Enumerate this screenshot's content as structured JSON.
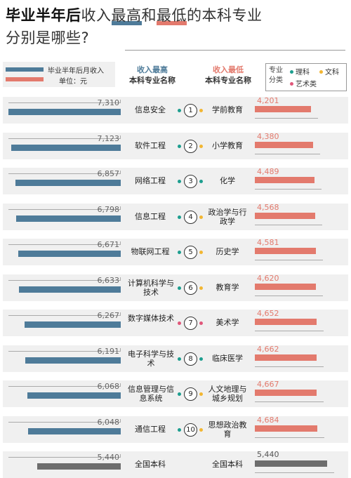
{
  "title": {
    "bold": "毕业半年后",
    "part1": "收入",
    "part2": "最高",
    "part3": "和",
    "part4": "最低",
    "part5": "的本科专业",
    "line2": "分别是哪些?"
  },
  "legend": {
    "label": "毕业半年后月收入",
    "unit": "单位：元"
  },
  "headers": {
    "left_top": "收入最高",
    "left_bottom": "本科专业名称",
    "right_top": "收入最低",
    "right_bottom": "本科专业名称"
  },
  "category_legend": {
    "label": "专业分类",
    "science": "理科",
    "humanities": "文科",
    "arts": "艺术类"
  },
  "colors": {
    "blue_bar": "#4e7b99",
    "red_bar": "#e37a6d",
    "grey_bar": "#6d6d6d",
    "band": "#f0f0f0",
    "science_dot": "#1d9e8f",
    "humanities_dot": "#f2b632",
    "arts_dot": "#e0577a"
  },
  "chart_data": {
    "type": "bar",
    "unit": "元",
    "series": [
      {
        "name": "收入最高",
        "categories": [
          "信息安全",
          "软件工程",
          "网络工程",
          "信息工程",
          "物联网工程",
          "计算机科学与技术",
          "数字媒体技术",
          "电子科学与技术",
          "信息管理与信息系统",
          "通信工程",
          "全国本科"
        ],
        "values": [
          7310,
          7123,
          6857,
          6798,
          6671,
          6633,
          6267,
          6191,
          6068,
          6048,
          5440
        ],
        "value_labels": [
          "7,310",
          "7,123",
          "6,857",
          "6,798",
          "6,671",
          "6,633",
          "6,267",
          "6,191",
          "6,068",
          "6,048",
          "5,440"
        ],
        "dot_types": [
          "science",
          "science",
          "science",
          "science",
          "science",
          "science",
          "arts",
          "science",
          "science",
          "science",
          null
        ]
      },
      {
        "name": "收入最低",
        "categories": [
          "学前教育",
          "小学教育",
          "化学",
          "政治学与行政学",
          "历史学",
          "教育学",
          "美术学",
          "临床医学",
          "人文地理与城乡规划",
          "思想政治教育",
          "全国本科"
        ],
        "values": [
          4201,
          4380,
          4489,
          4568,
          4581,
          4620,
          4652,
          4662,
          4667,
          4684,
          5440
        ],
        "value_labels": [
          "4,201",
          "4,380",
          "4,489",
          "4,568",
          "4,581",
          "4,620",
          "4,652",
          "4,662",
          "4,667",
          "4,684",
          "5,440"
        ],
        "dot_types": [
          "humanities",
          "humanities",
          "science",
          "humanities",
          "humanities",
          "humanities",
          "arts",
          "science",
          "humanities",
          "humanities",
          null
        ]
      }
    ],
    "ranks": [
      "1",
      "2",
      "3",
      "4",
      "5",
      "6",
      "7",
      "8",
      "9",
      "10",
      ""
    ]
  }
}
